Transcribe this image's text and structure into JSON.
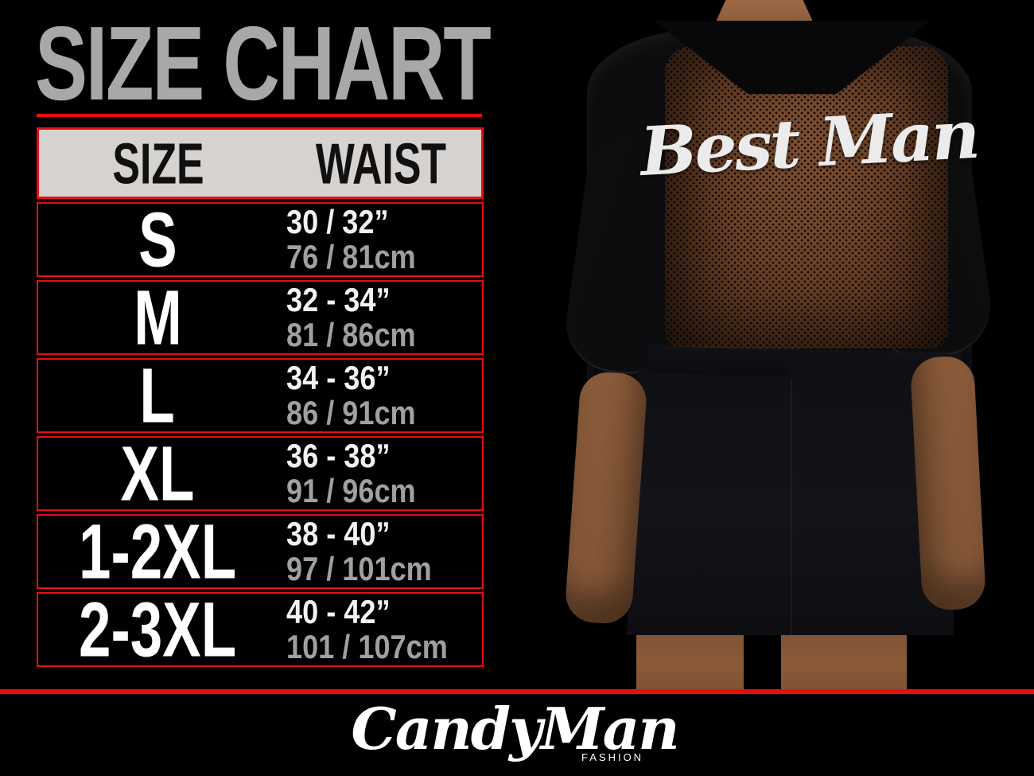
{
  "page": {
    "background": "#000000",
    "accent_red": "#e90e0e"
  },
  "header": {
    "title": "SIZE CHART"
  },
  "size_table": {
    "columns": {
      "size": "SIZE",
      "waist": "WAIST"
    },
    "rows": [
      {
        "size": "S",
        "waist_in": "30 / 32”",
        "waist_cm": "76 / 81cm"
      },
      {
        "size": "M",
        "waist_in": "32 - 34”",
        "waist_cm": "81 / 86cm"
      },
      {
        "size": "L",
        "waist_in": "34 - 36”",
        "waist_cm": "86 / 91cm"
      },
      {
        "size": "XL",
        "waist_in": "36 - 38”",
        "waist_cm": "91 / 96cm"
      },
      {
        "size": "1-2XL",
        "waist_in": "38 - 40”",
        "waist_cm": "97 / 101cm"
      },
      {
        "size": "2-3XL",
        "waist_in": "40 - 42”",
        "waist_cm": "101 / 107cm"
      }
    ]
  },
  "photo": {
    "garment_back_text": "Best Man"
  },
  "footer": {
    "brand": "CandyMan",
    "brand_sub": "FASHION"
  }
}
